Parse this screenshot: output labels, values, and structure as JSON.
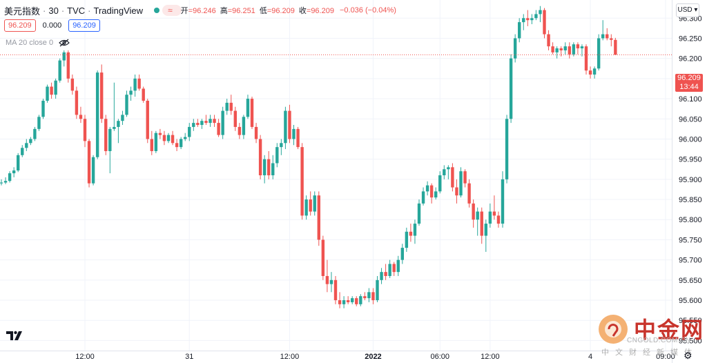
{
  "header": {
    "symbol": "美元指数",
    "interval": "30",
    "source": "TVC",
    "platform": "TradingView",
    "wave_icon": "≈",
    "open_label": "开",
    "open": "=96.246",
    "high_label": "高",
    "high": "=96.251",
    "low_label": "低",
    "low": "=96.209",
    "close_label": "收",
    "close": "=96.209",
    "change": "−0.036 (−0.04%)",
    "market_status_color": "#26a69a"
  },
  "quote": {
    "sell": "96.209",
    "spread": "0.000",
    "buy": "96.209"
  },
  "indicator": {
    "label": "MA 20 close 0",
    "visibility_icon": "eye-off-icon"
  },
  "currency_button": "USD",
  "last_price": {
    "price": "96.209",
    "countdown": "13:44"
  },
  "watermark": {
    "text": "中金网",
    "url": "CNGOLD.COM.CN",
    "subtitle": "中文财经新媒体"
  },
  "colors": {
    "up": "#26a69a",
    "down": "#ef5350",
    "grid": "#f0f3fa",
    "axis_text": "#131722"
  },
  "chart_data": {
    "type": "candlestick",
    "ylim": [
      95.475,
      96.345
    ],
    "yticks": [
      95.5,
      95.55,
      95.6,
      95.65,
      95.7,
      95.75,
      95.8,
      95.85,
      95.9,
      95.95,
      96.0,
      96.05,
      96.1,
      96.15,
      96.2,
      96.25,
      96.3
    ],
    "ytick_labels": [
      "95.500",
      "95.550",
      "95.600",
      "95.650",
      "95.700",
      "95.750",
      "95.800",
      "95.850",
      "95.900",
      "95.950",
      "96.000",
      "96.050",
      "96.100",
      "96.150",
      "96.200",
      "96.250",
      "96.300"
    ],
    "xtick_labels": [
      {
        "label": "12:00",
        "bar": 20,
        "bold": false
      },
      {
        "label": "31",
        "bar": 45,
        "bold": false
      },
      {
        "label": "12:00",
        "bar": 69,
        "bold": false
      },
      {
        "label": "2022",
        "bar": 89,
        "bold": true
      },
      {
        "label": "06:00",
        "bar": 105,
        "bold": false
      },
      {
        "label": "12:00",
        "bar": 117,
        "bold": false
      },
      {
        "label": "4",
        "bar": 141,
        "bold": false
      },
      {
        "label": "09:00",
        "bar": 159,
        "bold": false
      }
    ],
    "last_price": 96.209,
    "grid": true,
    "ohlc": [
      [
        95.89,
        95.9,
        95.885,
        95.892
      ],
      [
        95.892,
        95.905,
        95.888,
        95.896
      ],
      [
        95.896,
        95.92,
        95.892,
        95.915
      ],
      [
        95.915,
        95.93,
        95.905,
        95.922
      ],
      [
        95.922,
        95.965,
        95.918,
        95.96
      ],
      [
        95.96,
        95.985,
        95.955,
        95.978
      ],
      [
        95.978,
        96.0,
        95.97,
        95.99
      ],
      [
        95.99,
        96.005,
        95.985,
        96.0
      ],
      [
        96.0,
        96.03,
        95.995,
        96.025
      ],
      [
        96.025,
        96.06,
        96.02,
        96.055
      ],
      [
        96.055,
        96.1,
        96.05,
        96.095
      ],
      [
        96.095,
        96.135,
        96.09,
        96.13
      ],
      [
        96.13,
        96.14,
        96.1,
        96.11
      ],
      [
        96.11,
        96.15,
        96.1,
        96.145
      ],
      [
        96.145,
        96.2,
        96.14,
        96.195
      ],
      [
        96.195,
        96.22,
        96.18,
        96.215
      ],
      [
        96.215,
        96.22,
        96.14,
        96.15
      ],
      [
        96.15,
        96.16,
        96.11,
        96.12
      ],
      [
        96.12,
        96.13,
        96.05,
        96.06
      ],
      [
        96.06,
        96.08,
        96.04,
        96.05
      ],
      [
        96.05,
        96.06,
        95.98,
        95.995
      ],
      [
        95.995,
        96.0,
        95.88,
        95.89
      ],
      [
        95.89,
        95.96,
        95.885,
        95.955
      ],
      [
        95.955,
        96.17,
        95.95,
        96.165
      ],
      [
        96.165,
        96.185,
        96.04,
        96.05
      ],
      [
        96.05,
        96.06,
        95.96,
        95.97
      ],
      [
        95.97,
        96.03,
        95.915,
        96.025
      ],
      [
        96.025,
        96.14,
        96.02,
        96.03
      ],
      [
        96.03,
        96.05,
        95.99,
        96.045
      ],
      [
        96.045,
        96.07,
        96.035,
        96.06
      ],
      [
        96.06,
        96.12,
        96.055,
        96.11
      ],
      [
        96.11,
        96.13,
        96.095,
        96.12
      ],
      [
        96.12,
        96.16,
        96.105,
        96.15
      ],
      [
        96.15,
        96.16,
        96.12,
        96.125
      ],
      [
        96.125,
        96.13,
        96.09,
        96.095
      ],
      [
        96.095,
        96.1,
        95.99,
        96.0
      ],
      [
        96.0,
        96.02,
        95.96,
        95.97
      ],
      [
        95.97,
        96.02,
        95.965,
        96.015
      ],
      [
        96.015,
        96.025,
        96.0,
        96.01
      ],
      [
        96.01,
        96.02,
        95.985,
        95.995
      ],
      [
        95.995,
        96.015,
        95.99,
        96.01
      ],
      [
        96.01,
        96.02,
        95.985,
        95.99
      ],
      [
        95.99,
        96.0,
        95.97,
        95.98
      ],
      [
        95.98,
        96.005,
        95.975,
        96.0
      ],
      [
        96.0,
        96.015,
        95.995,
        96.005
      ],
      [
        96.005,
        96.04,
        95.995,
        96.03
      ],
      [
        96.03,
        96.05,
        96.02,
        96.04
      ],
      [
        96.04,
        96.05,
        96.03,
        96.035
      ],
      [
        96.035,
        96.05,
        96.025,
        96.045
      ],
      [
        96.045,
        96.06,
        96.035,
        96.04
      ],
      [
        96.04,
        96.06,
        96.03,
        96.05
      ],
      [
        96.05,
        96.06,
        96.03,
        96.04
      ],
      [
        96.04,
        96.05,
        96.005,
        96.01
      ],
      [
        96.01,
        96.08,
        96.0,
        96.07
      ],
      [
        96.07,
        96.1,
        96.06,
        96.09
      ],
      [
        96.09,
        96.11,
        96.06,
        96.07
      ],
      [
        96.07,
        96.08,
        96.02,
        96.03
      ],
      [
        96.03,
        96.04,
        96.0,
        96.01
      ],
      [
        96.01,
        96.06,
        96.0,
        96.055
      ],
      [
        96.055,
        96.11,
        96.05,
        96.1
      ],
      [
        96.1,
        96.105,
        96.025,
        96.03
      ],
      [
        96.03,
        96.04,
        95.99,
        96.0
      ],
      [
        96.0,
        96.01,
        95.9,
        95.91
      ],
      [
        95.91,
        95.96,
        95.89,
        95.95
      ],
      [
        95.95,
        95.97,
        95.9,
        95.91
      ],
      [
        95.91,
        95.96,
        95.9,
        95.94
      ],
      [
        95.94,
        95.99,
        95.93,
        95.98
      ],
      [
        95.98,
        96.0,
        95.96,
        95.99
      ],
      [
        95.99,
        96.08,
        95.975,
        96.07
      ],
      [
        96.07,
        96.085,
        95.99,
        96.0
      ],
      [
        96.0,
        96.035,
        95.985,
        96.025
      ],
      [
        96.025,
        96.03,
        95.975,
        95.98
      ],
      [
        95.98,
        95.99,
        95.8,
        95.81
      ],
      [
        95.81,
        95.86,
        95.8,
        95.85
      ],
      [
        95.85,
        95.87,
        95.81,
        95.82
      ],
      [
        95.82,
        95.87,
        95.81,
        95.86
      ],
      [
        95.86,
        95.87,
        95.735,
        95.75
      ],
      [
        95.75,
        95.76,
        95.65,
        95.66
      ],
      [
        95.66,
        95.7,
        95.62,
        95.64
      ],
      [
        95.64,
        95.67,
        95.62,
        95.65
      ],
      [
        95.65,
        95.66,
        95.59,
        95.6
      ],
      [
        95.6,
        95.62,
        95.58,
        95.59
      ],
      [
        95.59,
        95.61,
        95.58,
        95.6
      ],
      [
        95.6,
        95.61,
        95.59,
        95.595
      ],
      [
        95.595,
        95.61,
        95.59,
        95.605
      ],
      [
        95.605,
        95.61,
        95.585,
        95.59
      ],
      [
        95.59,
        95.615,
        95.585,
        95.61
      ],
      [
        95.61,
        95.62,
        95.6,
        95.605
      ],
      [
        95.605,
        95.63,
        95.595,
        95.62
      ],
      [
        95.62,
        95.63,
        95.59,
        95.6
      ],
      [
        95.6,
        95.66,
        95.595,
        95.65
      ],
      [
        95.65,
        95.68,
        95.64,
        95.67
      ],
      [
        95.67,
        95.69,
        95.65,
        95.66
      ],
      [
        95.66,
        95.7,
        95.655,
        95.69
      ],
      [
        95.69,
        95.695,
        95.66,
        95.67
      ],
      [
        95.67,
        95.71,
        95.66,
        95.7
      ],
      [
        95.7,
        95.74,
        95.69,
        95.73
      ],
      [
        95.73,
        95.78,
        95.72,
        95.77
      ],
      [
        95.77,
        95.79,
        95.745,
        95.76
      ],
      [
        95.76,
        95.8,
        95.74,
        95.79
      ],
      [
        95.79,
        95.85,
        95.785,
        95.84
      ],
      [
        95.84,
        95.88,
        95.835,
        95.87
      ],
      [
        95.87,
        95.895,
        95.86,
        95.885
      ],
      [
        95.885,
        95.89,
        95.84,
        95.855
      ],
      [
        95.855,
        95.88,
        95.85,
        95.87
      ],
      [
        95.87,
        95.92,
        95.865,
        95.91
      ],
      [
        95.91,
        95.935,
        95.9,
        95.925
      ],
      [
        95.925,
        95.935,
        95.9,
        95.93
      ],
      [
        95.93,
        95.94,
        95.87,
        95.88
      ],
      [
        95.88,
        95.9,
        95.84,
        95.86
      ],
      [
        95.86,
        95.93,
        95.855,
        95.92
      ],
      [
        95.92,
        95.925,
        95.88,
        95.89
      ],
      [
        95.89,
        95.9,
        95.83,
        95.84
      ],
      [
        95.84,
        95.85,
        95.78,
        95.8
      ],
      [
        95.8,
        95.83,
        95.76,
        95.82
      ],
      [
        95.82,
        95.83,
        95.74,
        95.76
      ],
      [
        95.76,
        95.8,
        95.72,
        95.79
      ],
      [
        95.79,
        95.84,
        95.78,
        95.82
      ],
      [
        95.82,
        95.86,
        95.8,
        95.81
      ],
      [
        95.81,
        95.82,
        95.78,
        95.79
      ],
      [
        95.79,
        95.92,
        95.78,
        95.9
      ],
      [
        95.9,
        96.06,
        95.89,
        96.05
      ],
      [
        96.05,
        96.21,
        96.04,
        96.2
      ],
      [
        96.2,
        96.26,
        96.19,
        96.25
      ],
      [
        96.25,
        96.3,
        96.24,
        96.29
      ],
      [
        96.29,
        96.31,
        96.27,
        96.3
      ],
      [
        96.3,
        96.32,
        96.28,
        96.295
      ],
      [
        96.295,
        96.31,
        96.285,
        96.3
      ],
      [
        96.3,
        96.32,
        96.295,
        96.31
      ],
      [
        96.31,
        96.33,
        96.29,
        96.32
      ],
      [
        96.32,
        96.325,
        96.25,
        96.26
      ],
      [
        96.26,
        96.27,
        96.22,
        96.23
      ],
      [
        96.23,
        96.24,
        96.21,
        96.215
      ],
      [
        96.215,
        96.23,
        96.2,
        96.225
      ],
      [
        96.225,
        96.23,
        96.205,
        96.22
      ],
      [
        96.22,
        96.24,
        96.21,
        96.23
      ],
      [
        96.23,
        96.24,
        96.2,
        96.21
      ],
      [
        96.21,
        96.24,
        96.205,
        96.235
      ],
      [
        96.235,
        96.24,
        96.21,
        96.225
      ],
      [
        96.225,
        96.235,
        96.205,
        96.23
      ],
      [
        96.23,
        96.235,
        96.16,
        96.17
      ],
      [
        96.17,
        96.18,
        96.15,
        96.16
      ],
      [
        96.16,
        96.18,
        96.15,
        96.175
      ],
      [
        96.175,
        96.26,
        96.17,
        96.25
      ],
      [
        96.25,
        96.295,
        96.245,
        96.26
      ],
      [
        96.26,
        96.275,
        96.245,
        96.25
      ],
      [
        96.25,
        96.26,
        96.23,
        96.246
      ],
      [
        96.246,
        96.251,
        96.209,
        96.209
      ]
    ]
  }
}
